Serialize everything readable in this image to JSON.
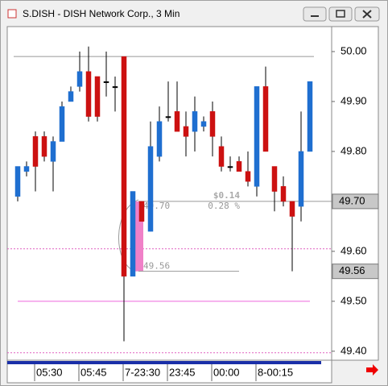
{
  "chart_data": {
    "type": "candlestick",
    "title": "S.DISH - DISH Network Corp., 3 Min",
    "categories": [
      null,
      null,
      "05:30",
      null,
      null,
      null,
      null,
      "05:45",
      null,
      null,
      null,
      null,
      "7-23:30",
      null,
      null,
      null,
      null,
      "23:45",
      null,
      null,
      null,
      null,
      "00:00",
      null,
      null,
      null,
      null,
      "8-00:15",
      null,
      null,
      null,
      null,
      null,
      null
    ],
    "open": [
      49.71,
      49.76,
      49.83,
      49.83,
      49.78,
      49.82,
      49.9,
      49.93,
      49.96,
      49.95,
      49.94,
      49.93,
      49.99,
      49.55,
      49.7,
      49.64,
      49.79,
      49.87,
      49.88,
      49.85,
      49.84,
      49.85,
      49.88,
      49.81,
      49.77,
      49.78,
      49.76,
      49.73,
      49.93,
      49.77,
      49.73,
      49.7,
      49.69,
      49.8
    ],
    "high": [
      49.77,
      49.78,
      49.84,
      49.84,
      49.83,
      49.9,
      49.93,
      50.0,
      50.01,
      49.95,
      50.0,
      49.95,
      49.99,
      49.72,
      49.7,
      49.86,
      49.89,
      49.94,
      49.94,
      49.88,
      49.91,
      49.87,
      49.9,
      49.83,
      49.79,
      49.79,
      49.8,
      49.93,
      49.97,
      49.77,
      49.75,
      49.7,
      49.88,
      49.94
    ],
    "low": [
      49.7,
      49.75,
      49.72,
      49.78,
      49.72,
      49.82,
      49.9,
      49.92,
      49.86,
      49.86,
      49.91,
      49.88,
      49.42,
      49.55,
      49.66,
      49.64,
      49.78,
      49.86,
      49.84,
      49.79,
      49.8,
      49.84,
      49.79,
      49.76,
      49.76,
      49.76,
      49.73,
      49.71,
      49.8,
      49.68,
      49.69,
      49.56,
      49.66,
      49.8
    ],
    "close": [
      49.77,
      49.77,
      49.77,
      49.79,
      49.82,
      49.89,
      49.92,
      49.96,
      49.87,
      49.87,
      49.94,
      49.93,
      49.55,
      49.72,
      49.66,
      49.81,
      49.86,
      49.87,
      49.84,
      49.83,
      49.88,
      49.86,
      49.83,
      49.77,
      49.77,
      49.76,
      49.74,
      49.93,
      49.8,
      49.72,
      49.7,
      49.67,
      49.8,
      49.94
    ],
    "up_color": "#1f6fd0",
    "down_color": "#cc1111",
    "ylim": [
      49.382,
      50.05
    ],
    "yticks": [
      {
        "value": 49.4,
        "label": "49.40"
      },
      {
        "value": 49.5,
        "label": "49.50"
      },
      {
        "value": 49.6,
        "label": "49.60"
      },
      {
        "value": 49.7,
        "label": "49.70"
      },
      {
        "value": 49.8,
        "label": "49.80"
      },
      {
        "value": 49.9,
        "label": "49.90"
      },
      {
        "value": 50,
        "label": "50.00"
      }
    ],
    "price_markers": [
      {
        "value": 49.7,
        "label": "49.70"
      },
      {
        "value": 49.56,
        "label": "49.56"
      }
    ],
    "hlines": [
      {
        "value": 49.99,
        "color": "#999999",
        "style": "solid"
      },
      {
        "value": 49.605,
        "color": "#e060c0",
        "style": "dotted"
      },
      {
        "value": 49.5,
        "color": "#ee66dd",
        "style": "solid"
      },
      {
        "value": 49.397,
        "color": "#e060c0",
        "style": "dotted"
      }
    ],
    "measure": {
      "from": 49.7,
      "to": 49.56,
      "from_label": "49.70",
      "to_label": "49.56",
      "change_label": "$0.14",
      "pct_label": "0.28 %"
    }
  }
}
